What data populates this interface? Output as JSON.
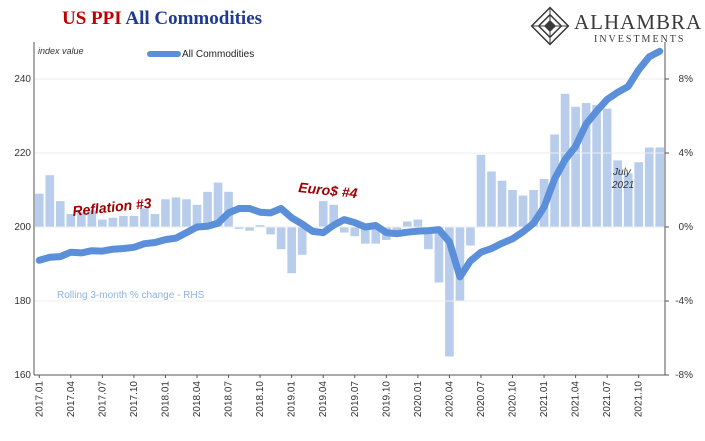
{
  "title": {
    "part1": "US PPI",
    "part2": "All Commodities"
  },
  "brand": {
    "name": "ALHAMBRA",
    "sub": "INVESTMENTS"
  },
  "chart_data": {
    "type": "line+bar",
    "y_left_unit": "index value",
    "legend": "All Commodities",
    "ylim_left": [
      160,
      250
    ],
    "yticks_left": [
      {
        "v": 160,
        "label": "160"
      },
      {
        "v": 180,
        "label": "180"
      },
      {
        "v": 200,
        "label": "200"
      },
      {
        "v": 220,
        "label": "220"
      },
      {
        "v": 240,
        "label": "240"
      }
    ],
    "ylim_right": [
      -8,
      10
    ],
    "yticks_right": [
      {
        "v": -8,
        "label": "-8%"
      },
      {
        "v": -4,
        "label": "-4%"
      },
      {
        "v": 0,
        "label": "0%"
      },
      {
        "v": 4,
        "label": "4%"
      },
      {
        "v": 8,
        "label": "8%"
      }
    ],
    "x_tick_labels": [
      "2017.01",
      "2017.04",
      "2017.07",
      "2017.10",
      "2018.01",
      "2018.04",
      "2018.07",
      "2018.10",
      "2019.01",
      "2019.04",
      "2019.07",
      "2019.10",
      "2020.01",
      "2020.04",
      "2020.07",
      "2020.10",
      "2021.01",
      "2021.04",
      "2021.07",
      "2021.10"
    ],
    "months": [
      "2017.01",
      "2017.02",
      "2017.03",
      "2017.04",
      "2017.05",
      "2017.06",
      "2017.07",
      "2017.08",
      "2017.09",
      "2017.10",
      "2017.11",
      "2017.12",
      "2018.01",
      "2018.02",
      "2018.03",
      "2018.04",
      "2018.05",
      "2018.06",
      "2018.07",
      "2018.08",
      "2018.09",
      "2018.10",
      "2018.11",
      "2018.12",
      "2019.01",
      "2019.02",
      "2019.03",
      "2019.04",
      "2019.05",
      "2019.06",
      "2019.07",
      "2019.08",
      "2019.09",
      "2019.10",
      "2019.11",
      "2019.12",
      "2020.01",
      "2020.02",
      "2020.03",
      "2020.04",
      "2020.05",
      "2020.06",
      "2020.07",
      "2020.08",
      "2020.09",
      "2020.10",
      "2020.11",
      "2020.12",
      "2021.01",
      "2021.02",
      "2021.03",
      "2021.04",
      "2021.05",
      "2021.06",
      "2021.07",
      "2021.08",
      "2021.09",
      "2021.10",
      "2021.11",
      "2021.12"
    ],
    "series": [
      {
        "name": "All Commodities",
        "axis": "left",
        "type": "line",
        "values": [
          191.0,
          191.8,
          192.0,
          193.2,
          193.0,
          193.6,
          193.5,
          194.0,
          194.2,
          194.5,
          195.5,
          195.8,
          196.6,
          197.0,
          198.5,
          200.0,
          200.2,
          201.0,
          203.8,
          205.0,
          205.0,
          204.0,
          203.8,
          205.0,
          202.5,
          200.8,
          198.8,
          198.5,
          200.5,
          202.0,
          201.2,
          200.0,
          200.4,
          198.5,
          198.2,
          198.6,
          198.9,
          199.0,
          199.3,
          196.0,
          186.5,
          190.8,
          193.2,
          194.2,
          195.6,
          196.8,
          198.7,
          201.0,
          205.4,
          213.0,
          218.2,
          221.8,
          227.8,
          231.3,
          234.5,
          236.4,
          238.0,
          242.5,
          246.0,
          247.5
        ]
      },
      {
        "name": "Rolling 3-month % change - RHS",
        "axis": "right",
        "type": "bar",
        "values": [
          1.8,
          2.8,
          1.4,
          0.7,
          0.8,
          0.9,
          0.4,
          0.5,
          0.6,
          0.6,
          1.0,
          0.7,
          1.5,
          1.6,
          1.5,
          1.2,
          1.9,
          2.4,
          1.9,
          -0.1,
          -0.2,
          0.1,
          -0.4,
          -1.2,
          -2.5,
          -1.5,
          0.0,
          1.4,
          1.2,
          -0.3,
          -0.5,
          -0.9,
          -0.9,
          -0.7,
          -0.3,
          0.3,
          0.4,
          -1.2,
          -3.0,
          -7.0,
          -4.0,
          -1.0,
          3.9,
          3.0,
          2.5,
          2.0,
          1.7,
          2.0,
          2.6,
          5.0,
          7.2,
          6.5,
          6.7,
          6.6,
          6.4,
          3.6,
          2.9,
          3.5,
          4.3,
          4.3
        ]
      }
    ],
    "annotations": [
      "Reflation #3",
      "Euro$ #4",
      "July",
      "2021",
      "Rolling  3-month % change - RHS"
    ]
  }
}
